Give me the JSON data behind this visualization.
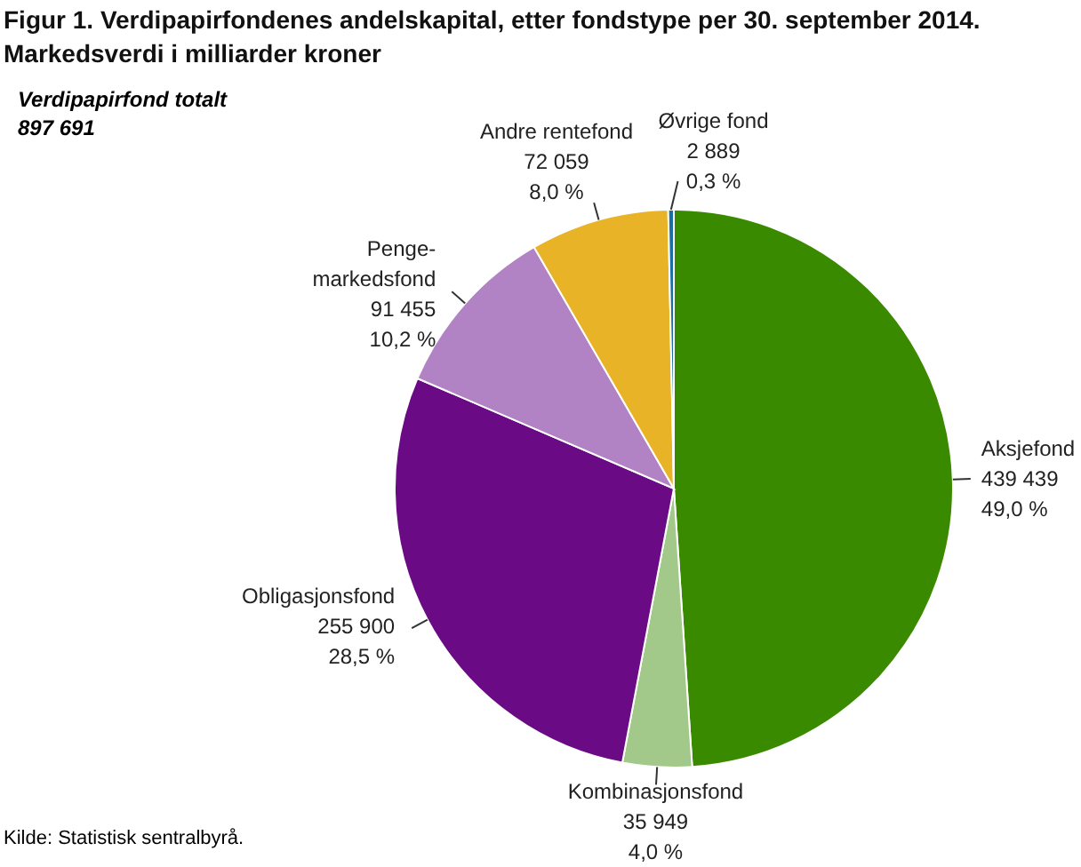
{
  "chart_data": {
    "type": "pie",
    "title": "Figur 1. Verdipapirfondenes andelskapital, etter fondstype per 30. september 2014.",
    "subtitle": "Markedsverdi i milliarder kroner",
    "categories": [
      "Aksjefond",
      "Kombinasjonsfond",
      "Obligasjonsfond",
      "Penge-\nmarkedsfond",
      "Andre rentefond",
      "Øvrige fond"
    ],
    "values": [
      439439,
      35949,
      255900,
      91455,
      72059,
      2889
    ],
    "value_labels": [
      "439 439\n49,0 %",
      "35 949\n4,0 %",
      "255 900\n28,5 %",
      "91 455\n10,2 %",
      "72 059\n8,0 %",
      "2 889\n0,3 %"
    ],
    "colors": [
      "#3a8a00",
      "#a3c98a",
      "#6a0a84",
      "#b283c4",
      "#e8b326",
      "#1a6fa0"
    ],
    "annotations": [
      "Verdipapirfond totalt\n897 691",
      "Kilde: Statistisk sentralbyrå."
    ],
    "legend": false
  }
}
